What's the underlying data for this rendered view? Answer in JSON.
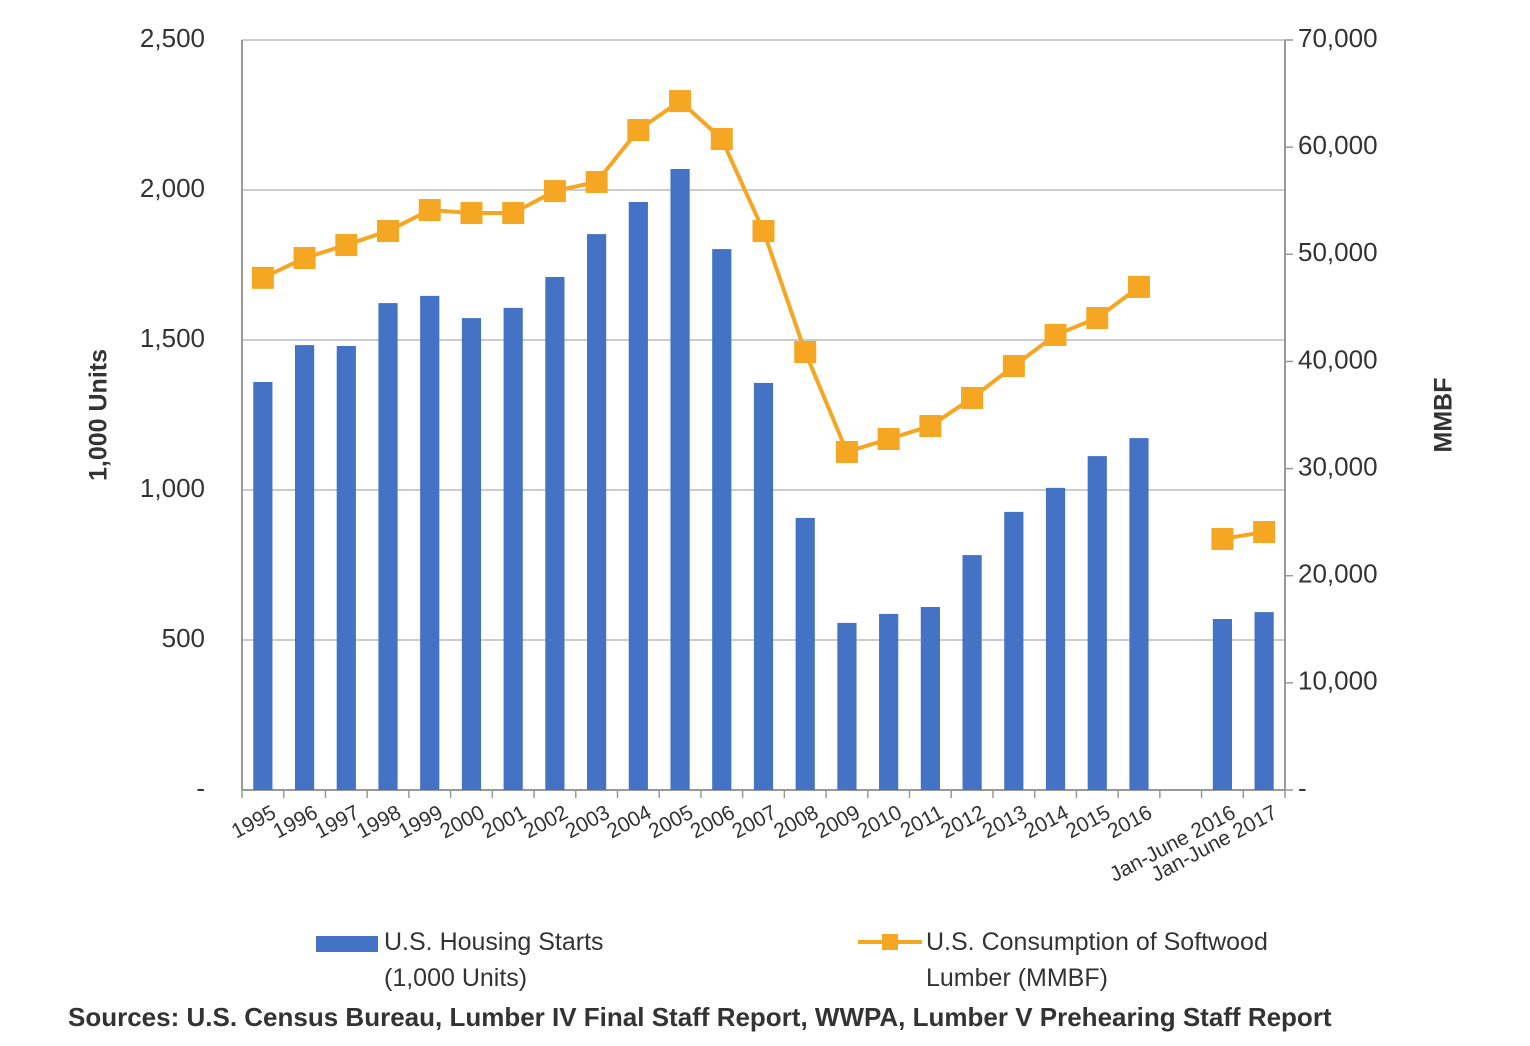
{
  "chart_data": {
    "type": "bar_line",
    "categories": [
      "1995",
      "1996",
      "1997",
      "1998",
      "1999",
      "2000",
      "2001",
      "2002",
      "2003",
      "2004",
      "2005",
      "2006",
      "2007",
      "2008",
      "2009",
      "2010",
      "2011",
      "2012",
      "2013",
      "2014",
      "2015",
      "2016",
      null,
      "Jan-June 2016",
      "Jan-June 2017"
    ],
    "series": [
      {
        "name": "U.S. Housing Starts (1,000 Units)",
        "color": "#4472c4",
        "type": "bar",
        "values": [
          1360,
          1483,
          1480,
          1623,
          1647,
          1573,
          1607,
          1710,
          1853,
          1960,
          2070,
          1803,
          1357,
          907,
          557,
          587,
          610,
          783,
          927,
          1007,
          1113,
          1173,
          null,
          570,
          593
        ]
      },
      {
        "name": "U.S. Consumption of Softwood Lumber (MMBF)",
        "color": "#f5a623",
        "type": "line",
        "axis": "y2",
        "values": [
          47800,
          49650,
          50870,
          52170,
          54130,
          53850,
          53850,
          55900,
          56750,
          61600,
          64300,
          60760,
          52170,
          40880,
          31550,
          32760,
          33970,
          36590,
          39570,
          42470,
          44050,
          46950,
          null,
          23430,
          24080
        ]
      }
    ],
    "ylabel": "1,000 Units",
    "y2label": "MMBF",
    "ylim": [
      0,
      2500
    ],
    "yticks": [
      {
        "value": 0,
        "label": "-"
      },
      500,
      {
        "value": 1000,
        "label": "1,000"
      },
      {
        "value": 1500,
        "label": "1,500"
      },
      {
        "value": 2000,
        "label": "2,000"
      },
      {
        "value": 2500,
        "label": "2,500"
      }
    ],
    "y2lim": [
      0,
      70000
    ],
    "y2ticks": [
      {
        "value": 0,
        "label": "-"
      },
      {
        "value": 10000,
        "label": "10,000"
      },
      {
        "value": 20000,
        "label": "20,000"
      },
      {
        "value": 30000,
        "label": "30,000"
      },
      {
        "value": 40000,
        "label": "40,000"
      },
      {
        "value": 50000,
        "label": "50,000"
      },
      {
        "value": 60000,
        "label": "60,000"
      },
      {
        "value": 70000,
        "label": "70,000"
      }
    ],
    "grid": true,
    "source": "Sources: U.S. Census Bureau, Lumber IV Final Staff Report, WWPA, Lumber V Prehearing Staff Report"
  }
}
